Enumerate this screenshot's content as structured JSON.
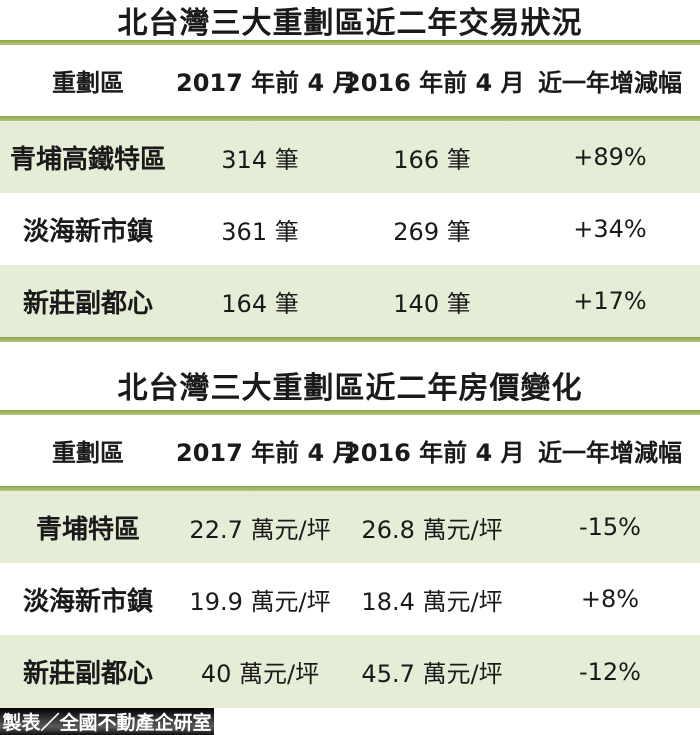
{
  "page": {
    "accent_color": "#9CB558",
    "stripe_color": "#E5EDD6",
    "text_color": "#1A1A1A",
    "credit_bar_color": "#1C1C1C"
  },
  "chart_data": [
    {
      "type": "table",
      "title": "北台灣三大重劃區近二年交易狀況",
      "columns": [
        "重劃區",
        "2017 年前 4 月",
        "2016 年前 4 月",
        "近一年增減幅"
      ],
      "rows": [
        [
          "青埔高鐵特區",
          "314 筆",
          "166 筆",
          "+89%"
        ],
        [
          "淡海新市鎮",
          "361 筆",
          "269 筆",
          "+34%"
        ],
        [
          "新莊副都心",
          "164 筆",
          "140 筆",
          "+17%"
        ]
      ],
      "units": "筆 (transaction count)",
      "numeric_values": {
        "2017": [
          314,
          361,
          164
        ],
        "2016": [
          166,
          269,
          140
        ],
        "change_pct": [
          89,
          34,
          17
        ]
      }
    },
    {
      "type": "table",
      "title": "北台灣三大重劃區近二年房價變化",
      "columns": [
        "重劃區",
        "2017 年前 4 月",
        "2016 年前 4 月",
        "近一年增減幅"
      ],
      "rows": [
        [
          "青埔特區",
          "22.7 萬元/坪",
          "26.8 萬元/坪",
          "-15%"
        ],
        [
          "淡海新市鎮",
          "19.9 萬元/坪",
          "18.4 萬元/坪",
          "+8%"
        ],
        [
          "新莊副都心",
          "40 萬元/坪",
          "45.7 萬元/坪",
          "-12%"
        ]
      ],
      "units": "萬元/坪 (price per ping)",
      "numeric_values": {
        "2017": [
          22.7,
          19.9,
          40
        ],
        "2016": [
          26.8,
          18.4,
          45.7
        ],
        "change_pct": [
          -15,
          8,
          -12
        ]
      }
    }
  ],
  "footer": {
    "credit": "製表／全國不動產企研室"
  }
}
